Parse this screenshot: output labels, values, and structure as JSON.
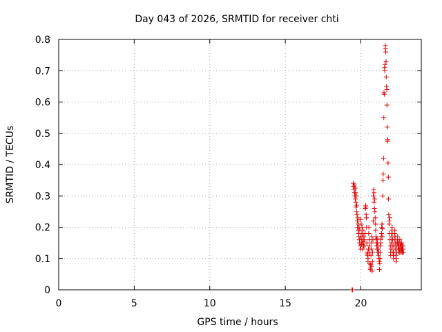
{
  "chart_data": {
    "type": "scatter",
    "title": "Day 043 of 2026, SRMTID for receiver chti",
    "xlabel": "GPS time / hours",
    "ylabel": "SRMTID / TECUs",
    "xlim": [
      0,
      24
    ],
    "ylim": [
      0,
      0.8
    ],
    "xticks": [
      0,
      5,
      10,
      15,
      20
    ],
    "xtick_labels": [
      "0",
      "5",
      "10",
      "15",
      "20"
    ],
    "yticks": [
      0,
      0.1,
      0.2,
      0.3,
      0.4,
      0.5,
      0.6,
      0.7,
      0.8
    ],
    "ytick_labels": [
      "0",
      "0.1",
      "0.2",
      "0.3",
      "0.4",
      "0.5",
      "0.6",
      "0.7",
      "0.8"
    ],
    "grid": true,
    "marker": "plus",
    "color": "#dd0000",
    "series": [
      {
        "name": "SRMTID",
        "points": [
          [
            19.42,
            0.0
          ],
          [
            19.45,
            0.0
          ],
          [
            19.5,
            0.34
          ],
          [
            19.52,
            0.33
          ],
          [
            19.55,
            0.32
          ],
          [
            19.57,
            0.335
          ],
          [
            19.58,
            0.31
          ],
          [
            19.6,
            0.3
          ],
          [
            19.62,
            0.325
          ],
          [
            19.63,
            0.29
          ],
          [
            19.65,
            0.31
          ],
          [
            19.67,
            0.28
          ],
          [
            19.68,
            0.265
          ],
          [
            19.7,
            0.3
          ],
          [
            19.72,
            0.25
          ],
          [
            19.73,
            0.27
          ],
          [
            19.75,
            0.24
          ],
          [
            19.77,
            0.22
          ],
          [
            19.78,
            0.2
          ],
          [
            19.8,
            0.23
          ],
          [
            19.82,
            0.19
          ],
          [
            19.83,
            0.21
          ],
          [
            19.85,
            0.18
          ],
          [
            19.87,
            0.17
          ],
          [
            19.88,
            0.2
          ],
          [
            19.9,
            0.16
          ],
          [
            19.92,
            0.15
          ],
          [
            19.93,
            0.19
          ],
          [
            19.95,
            0.14
          ],
          [
            19.97,
            0.17
          ],
          [
            19.98,
            0.225
          ],
          [
            20.0,
            0.13
          ],
          [
            20.02,
            0.21
          ],
          [
            20.03,
            0.16
          ],
          [
            20.05,
            0.145
          ],
          [
            20.07,
            0.18
          ],
          [
            20.08,
            0.2
          ],
          [
            20.1,
            0.15
          ],
          [
            20.12,
            0.17
          ],
          [
            20.13,
            0.13
          ],
          [
            20.15,
            0.19
          ],
          [
            20.17,
            0.155
          ],
          [
            20.18,
            0.14
          ],
          [
            20.2,
            0.17
          ],
          [
            20.22,
            0.16
          ],
          [
            20.25,
            0.14
          ],
          [
            20.28,
            0.18
          ],
          [
            20.3,
            0.26
          ],
          [
            20.32,
            0.27
          ],
          [
            20.33,
            0.265
          ],
          [
            20.35,
            0.24
          ],
          [
            20.37,
            0.23
          ],
          [
            20.38,
            0.2
          ],
          [
            20.4,
            0.15
          ],
          [
            20.42,
            0.12
          ],
          [
            20.43,
            0.115
          ],
          [
            20.45,
            0.11
          ],
          [
            20.47,
            0.09
          ],
          [
            20.48,
            0.1
          ],
          [
            20.5,
            0.13
          ],
          [
            20.52,
            0.18
          ],
          [
            20.53,
            0.2
          ],
          [
            20.55,
            0.16
          ],
          [
            20.57,
            0.14
          ],
          [
            20.58,
            0.12
          ],
          [
            20.6,
            0.085
          ],
          [
            20.62,
            0.07
          ],
          [
            20.63,
            0.065
          ],
          [
            20.65,
            0.08
          ],
          [
            20.67,
            0.11
          ],
          [
            20.68,
            0.13
          ],
          [
            20.7,
            0.15
          ],
          [
            20.72,
            0.17
          ],
          [
            20.73,
            0.075
          ],
          [
            20.75,
            0.06
          ],
          [
            20.77,
            0.09
          ],
          [
            20.78,
            0.12
          ],
          [
            20.8,
            0.16
          ],
          [
            20.82,
            0.22
          ],
          [
            20.83,
            0.3
          ],
          [
            20.85,
            0.32
          ],
          [
            20.87,
            0.31
          ],
          [
            20.88,
            0.28
          ],
          [
            20.9,
            0.26
          ],
          [
            20.92,
            0.29
          ],
          [
            20.93,
            0.25
          ],
          [
            20.95,
            0.23
          ],
          [
            20.97,
            0.21
          ],
          [
            20.98,
            0.19
          ],
          [
            21.0,
            0.17
          ],
          [
            21.02,
            0.16
          ],
          [
            21.03,
            0.15
          ],
          [
            21.05,
            0.14
          ],
          [
            21.07,
            0.165
          ],
          [
            21.08,
            0.13
          ],
          [
            21.1,
            0.15
          ],
          [
            21.12,
            0.12
          ],
          [
            21.13,
            0.14
          ],
          [
            21.15,
            0.13
          ],
          [
            21.17,
            0.11
          ],
          [
            21.18,
            0.12
          ],
          [
            21.2,
            0.1
          ],
          [
            21.22,
            0.09
          ],
          [
            21.23,
            0.065
          ],
          [
            21.25,
            0.085
          ],
          [
            21.27,
            0.1
          ],
          [
            21.28,
            0.12
          ],
          [
            21.3,
            0.14
          ],
          [
            21.32,
            0.16
          ],
          [
            21.33,
            0.15
          ],
          [
            21.35,
            0.17
          ],
          [
            21.37,
            0.18
          ],
          [
            21.38,
            0.2
          ],
          [
            21.4,
            0.21
          ],
          [
            21.42,
            0.195
          ],
          [
            21.43,
            0.17
          ],
          [
            21.45,
            0.3
          ],
          [
            21.47,
            0.35
          ],
          [
            21.48,
            0.37
          ],
          [
            21.5,
            0.42
          ],
          [
            21.52,
            0.55
          ],
          [
            21.53,
            0.63
          ],
          [
            21.55,
            0.625
          ],
          [
            21.57,
            0.71
          ],
          [
            21.58,
            0.7
          ],
          [
            21.6,
            0.72
          ],
          [
            21.62,
            0.78
          ],
          [
            21.63,
            0.77
          ],
          [
            21.65,
            0.76
          ],
          [
            21.67,
            0.73
          ],
          [
            21.68,
            0.68
          ],
          [
            21.7,
            0.65
          ],
          [
            21.72,
            0.64
          ],
          [
            21.73,
            0.59
          ],
          [
            21.75,
            0.52
          ],
          [
            21.77,
            0.475
          ],
          [
            21.78,
            0.48
          ],
          [
            21.8,
            0.405
          ],
          [
            21.82,
            0.36
          ],
          [
            21.83,
            0.29
          ],
          [
            21.85,
            0.24
          ],
          [
            21.87,
            0.22
          ],
          [
            21.88,
            0.21
          ],
          [
            21.9,
            0.18
          ],
          [
            21.92,
            0.23
          ],
          [
            21.93,
            0.16
          ],
          [
            21.95,
            0.14
          ],
          [
            21.97,
            0.12
          ],
          [
            21.98,
            0.11
          ],
          [
            22.0,
            0.13
          ],
          [
            22.02,
            0.15
          ],
          [
            22.03,
            0.17
          ],
          [
            22.05,
            0.19
          ],
          [
            22.07,
            0.2
          ],
          [
            22.08,
            0.18
          ],
          [
            22.1,
            0.16
          ],
          [
            22.12,
            0.14
          ],
          [
            22.13,
            0.12
          ],
          [
            22.15,
            0.11
          ],
          [
            22.17,
            0.1
          ],
          [
            22.18,
            0.12
          ],
          [
            22.2,
            0.14
          ],
          [
            22.22,
            0.16
          ],
          [
            22.23,
            0.18
          ],
          [
            22.25,
            0.19
          ],
          [
            22.27,
            0.17
          ],
          [
            22.28,
            0.15
          ],
          [
            22.3,
            0.13
          ],
          [
            22.32,
            0.11
          ],
          [
            22.33,
            0.09
          ],
          [
            22.35,
            0.1
          ],
          [
            22.37,
            0.12
          ],
          [
            22.38,
            0.14
          ],
          [
            22.4,
            0.15
          ],
          [
            22.42,
            0.16
          ],
          [
            22.43,
            0.17
          ],
          [
            22.45,
            0.15
          ],
          [
            22.47,
            0.14
          ],
          [
            22.48,
            0.13
          ],
          [
            22.5,
            0.12
          ],
          [
            22.52,
            0.14
          ],
          [
            22.53,
            0.15
          ],
          [
            22.55,
            0.13
          ],
          [
            22.57,
            0.12
          ],
          [
            22.58,
            0.16
          ],
          [
            22.6,
            0.15
          ],
          [
            22.62,
            0.14
          ],
          [
            22.63,
            0.13
          ],
          [
            22.65,
            0.12
          ],
          [
            22.67,
            0.14
          ],
          [
            22.68,
            0.13
          ],
          [
            22.7,
            0.15
          ],
          [
            22.72,
            0.12
          ],
          [
            22.73,
            0.13
          ],
          [
            22.75,
            0.14
          ],
          [
            22.77,
            0.12
          ],
          [
            22.78,
            0.13
          ],
          [
            22.8,
            0.14
          ],
          [
            22.82,
            0.12
          ]
        ]
      }
    ]
  }
}
